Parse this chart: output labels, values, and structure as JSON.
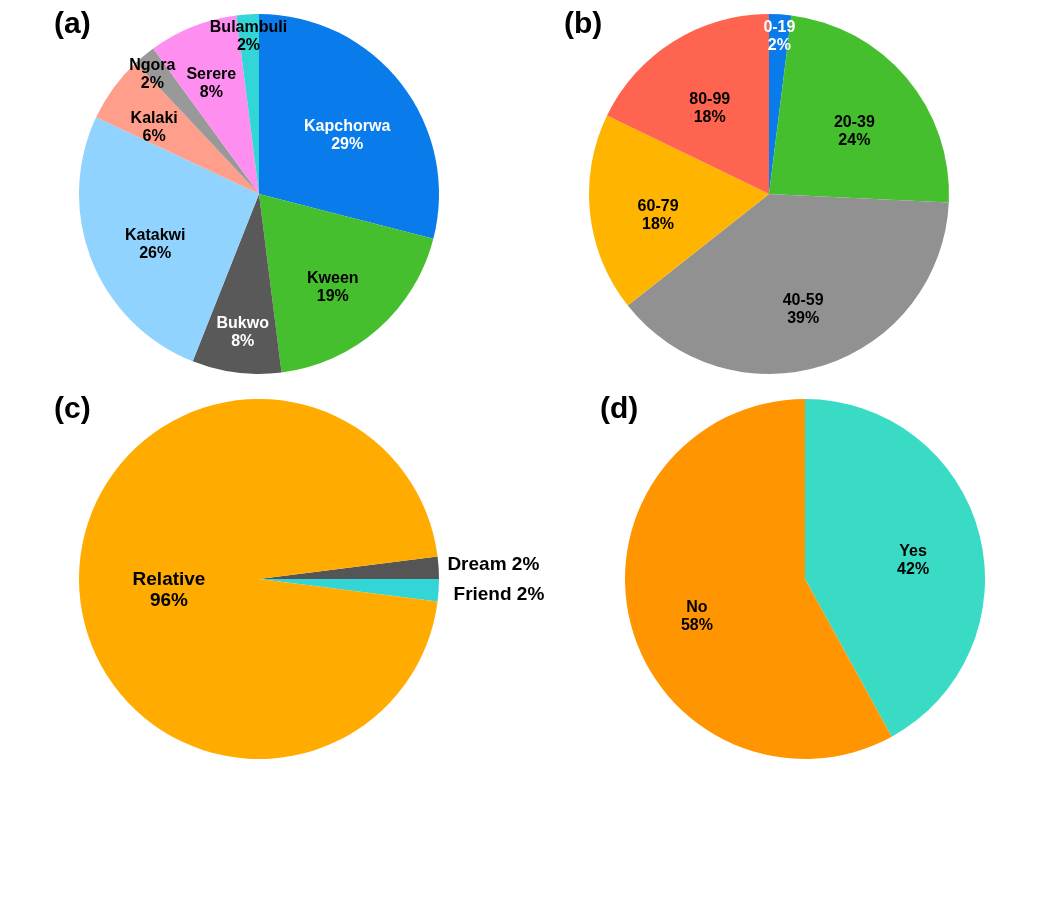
{
  "chart_data": [
    {
      "type": "pie",
      "title": "(a)",
      "categories": [
        "Kapchorwa",
        "Kween",
        "Bukwo",
        "Katakwi",
        "Kalaki",
        "Ngora",
        "Serere",
        "Bulambuli"
      ],
      "values": [
        29,
        19,
        8,
        26,
        6,
        2,
        8,
        2
      ],
      "value_labels": [
        "29%",
        "19%",
        "8%",
        "26%",
        "6%",
        "2%",
        "8%",
        "2%"
      ],
      "colors": [
        "#0a7bea",
        "#46bf2e",
        "#595959",
        "#8fd3fe",
        "#ff9e8a",
        "#999999",
        "#fe8ff0",
        "#33d6d6"
      ]
    },
    {
      "type": "pie",
      "title": "(b)",
      "categories": [
        "0-19",
        "20-39",
        "40-59",
        "60-79",
        "80-99"
      ],
      "values": [
        2,
        24,
        39,
        18,
        18
      ],
      "value_labels": [
        "2%",
        "24%",
        "39%",
        "18%",
        "18%"
      ],
      "colors": [
        "#0a7bea",
        "#46bf2e",
        "#919191",
        "#ffb400",
        "#ff6450"
      ]
    },
    {
      "type": "pie",
      "title": "(c)",
      "categories": [
        "Dream",
        "Friend",
        "Relative"
      ],
      "values": [
        2,
        2,
        96
      ],
      "value_labels": [
        "2%",
        "2%",
        "96%"
      ],
      "colors": [
        "#555555",
        "#33d6d6",
        "#ffab00"
      ]
    },
    {
      "type": "pie",
      "title": "(d)",
      "categories": [
        "Yes",
        "No"
      ],
      "values": [
        42,
        58
      ],
      "value_labels": [
        "42%",
        "58%"
      ],
      "colors": [
        "#3adbc4",
        "#ff9500"
      ]
    }
  ]
}
